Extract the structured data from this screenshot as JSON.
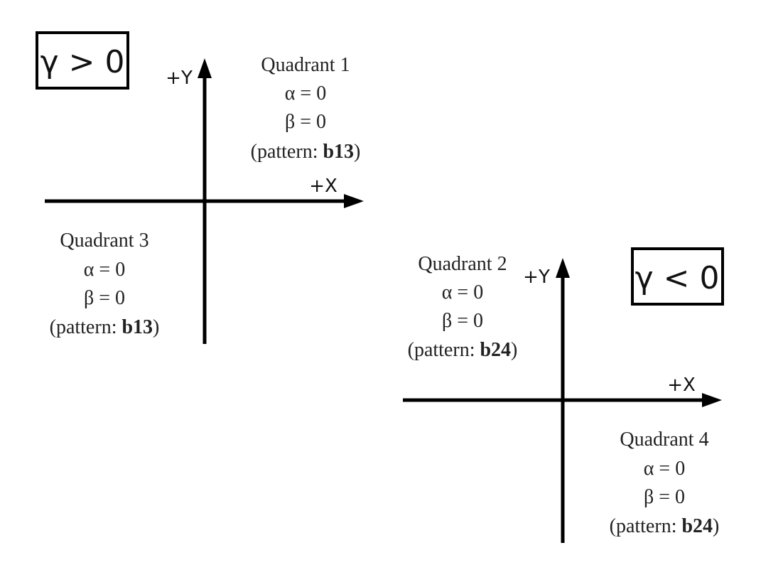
{
  "diagram": {
    "panels": [
      {
        "id": "gamma-positive",
        "gamma_label": "γ > 0",
        "x_axis_label": "+X",
        "y_axis_label": "+Y",
        "quadrants": [
          {
            "name": "Quadrant 1",
            "alpha": "α = 0",
            "beta": "β = 0",
            "pattern_prefix": "(pattern: ",
            "pattern": "b13",
            "pattern_suffix": ")"
          },
          {
            "name": "Quadrant 3",
            "alpha": "α = 0",
            "beta": "β = 0",
            "pattern_prefix": "(pattern: ",
            "pattern": "b13",
            "pattern_suffix": ")"
          }
        ]
      },
      {
        "id": "gamma-negative",
        "gamma_label": "γ < 0",
        "x_axis_label": "+X",
        "y_axis_label": "+Y",
        "quadrants": [
          {
            "name": "Quadrant 2",
            "alpha": "α = 0",
            "beta": "β = 0",
            "pattern_prefix": "(pattern: ",
            "pattern": "b24",
            "pattern_suffix": ")"
          },
          {
            "name": "Quadrant 4",
            "alpha": "α = 0",
            "beta": "β = 0",
            "pattern_prefix": "(pattern: ",
            "pattern": "b24",
            "pattern_suffix": ")"
          }
        ]
      }
    ]
  }
}
